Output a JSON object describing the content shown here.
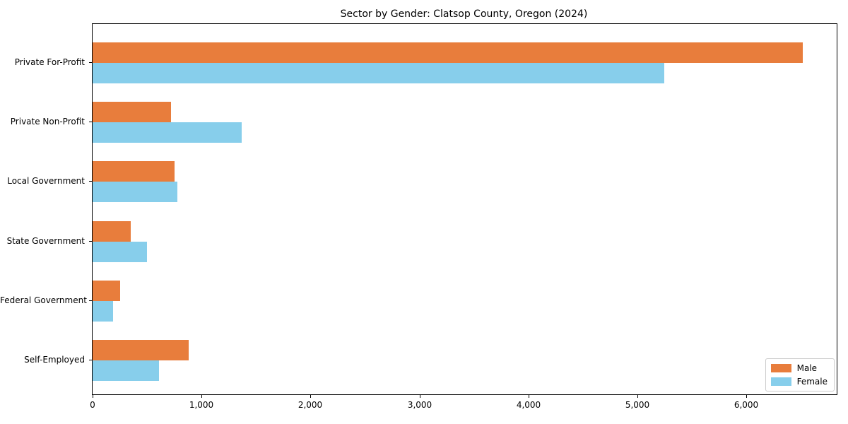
{
  "chart_data": {
    "type": "bar",
    "orientation": "horizontal",
    "title": "Sector by Gender: Clatsop County, Oregon (2024)",
    "categories": [
      "Private For-Profit",
      "Private Non-Profit",
      "Local Government",
      "State Government",
      "Federal Government",
      "Self-Employed"
    ],
    "series": [
      {
        "name": "Male",
        "color": "#E87D3C",
        "values": [
          6520,
          720,
          750,
          350,
          250,
          880
        ]
      },
      {
        "name": "Female",
        "color": "#87CEEB",
        "values": [
          5250,
          1370,
          780,
          500,
          190,
          610
        ]
      }
    ],
    "xlim": [
      0,
      6830
    ],
    "xticks": [
      0,
      1000,
      2000,
      3000,
      4000,
      5000,
      6000
    ],
    "xtick_labels": [
      "0",
      "1,000",
      "2,000",
      "3,000",
      "4,000",
      "5,000",
      "6,000"
    ],
    "xlabel": "",
    "ylabel": "",
    "grid": false,
    "legend_position": "lower right"
  }
}
